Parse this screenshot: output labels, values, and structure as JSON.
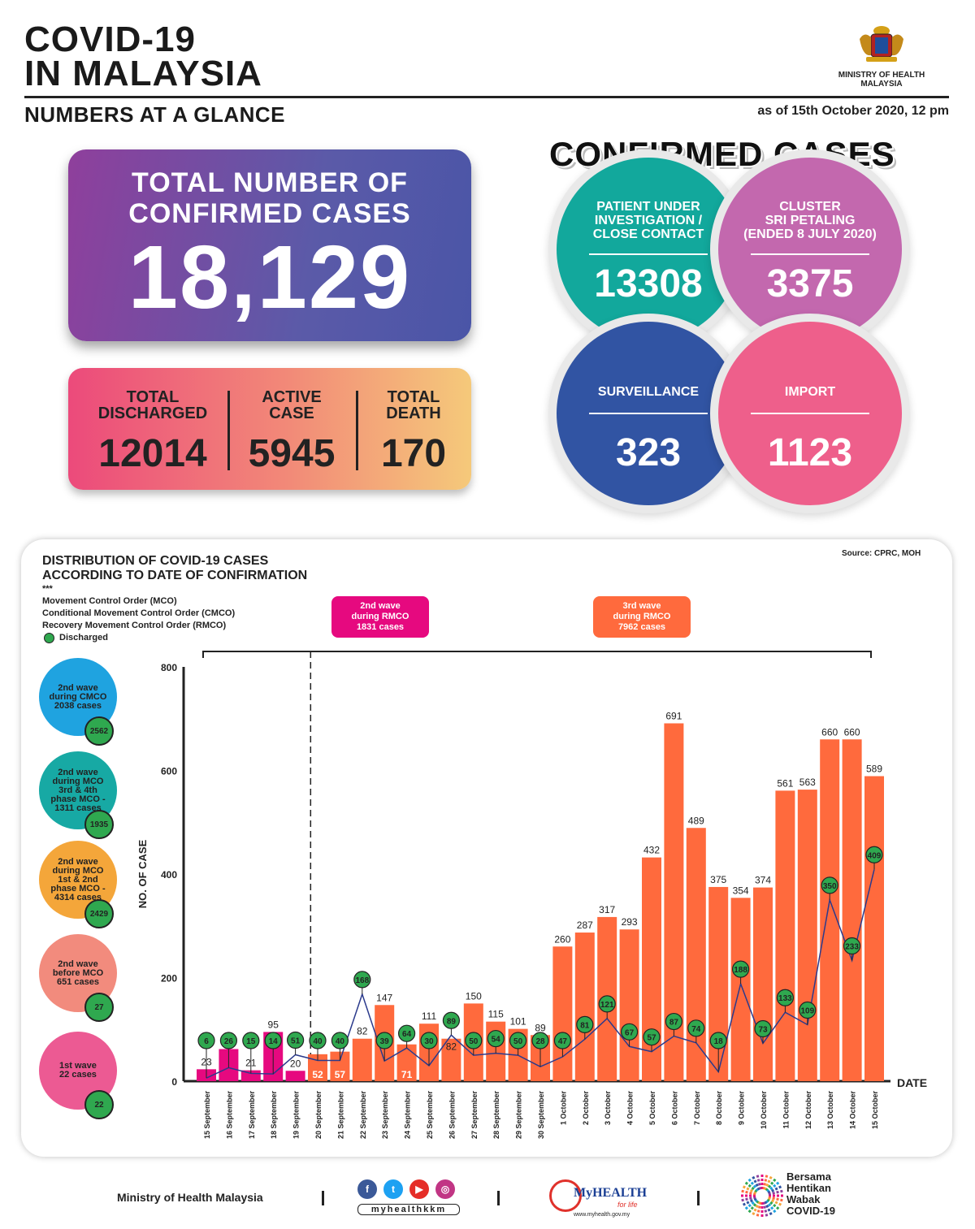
{
  "header": {
    "title_line1": "COVID-19",
    "title_line2": "IN MALAYSIA",
    "subtitle": "NUMBERS AT A GLANCE",
    "as_of": "as of 15th October 2020, 12 pm",
    "ministry_line1": "MINISTRY OF HEALTH",
    "ministry_line2": "MALAYSIA"
  },
  "totals": {
    "label_line1": "TOTAL NUMBER OF",
    "label_line2": "CONFIRMED CASES",
    "value": "18,129"
  },
  "stats": {
    "discharged_l1": "TOTAL",
    "discharged_l2": "DISCHARGED",
    "discharged": "12014",
    "active_l1": "ACTIVE",
    "active_l2": "CASE",
    "active": "5945",
    "death_l1": "TOTAL",
    "death_l2": "DEATH",
    "death": "170"
  },
  "confirmed": {
    "title": "CONFIRMED CASES",
    "pui_l1": "PATIENT UNDER",
    "pui_l2": "INVESTIGATION /",
    "pui_l3": "CLOSE CONTACT",
    "pui": "13308",
    "cluster_l1": "CLUSTER",
    "cluster_l2": "SRI PETALING",
    "cluster_l3": "(ENDED 8 JULY 2020)",
    "cluster": "3375",
    "surveillance_label": "SURVEILLANCE",
    "surveillance": "323",
    "import_label": "IMPORT",
    "import": "1123",
    "colors": {
      "pui": "#12a89c",
      "cluster": "#c368ae",
      "surveillance": "#3154a3",
      "import": "#ee5f8b"
    }
  },
  "panel": {
    "title_l1": "DISTRIBUTION OF COVID-19 CASES",
    "title_l2": "ACCORDING TO DATE OF CONFIRMATION",
    "legend_stars": "***",
    "legend_mco": "Movement Control Order (MCO)",
    "legend_cmco": "Conditional Movement Control Order (CMCO)",
    "legend_rmco": "Recovery Movement Control Order (RMCO)",
    "legend_discharged": "Discharged",
    "source": "Source: CPRC, MOH",
    "wave2_l1": "2nd wave",
    "wave2_l2": "during RMCO",
    "wave2_l3": "1831 cases",
    "wave3_l1": "3rd wave",
    "wave3_l2": "during RMCO",
    "wave3_l3": "7962 cases",
    "side": [
      {
        "l1": "2nd wave",
        "l2": "during CMCO",
        "l3": "2038 cases",
        "l4": "",
        "badge": "2562",
        "color": "#1fa3e0"
      },
      {
        "l1": "2nd wave",
        "l2": "during MCO",
        "l3": "3rd & 4th",
        "l4": "phase MCO -",
        "l5": "1311 cases",
        "badge": "1935",
        "color": "#17a9a4"
      },
      {
        "l1": "2nd wave",
        "l2": "during MCO",
        "l3": "1st & 2nd",
        "l4": "phase MCO -",
        "l5": "4314 cases",
        "badge": "2429",
        "color": "#f4a63a"
      },
      {
        "l1": "2nd wave",
        "l2": "before MCO",
        "l3": "651 cases",
        "l4": "",
        "badge": "27",
        "color": "#f28b7d"
      },
      {
        "l1": "1st wave",
        "l2": "22 cases",
        "l3": "",
        "l4": "",
        "badge": "22",
        "color": "#ec5a93"
      }
    ]
  },
  "chart_data": {
    "type": "bar",
    "ylabel": "NO. OF CASE",
    "xlabel": "DATE",
    "ylim": [
      0,
      800
    ],
    "yticks": [
      0,
      200,
      400,
      600,
      800
    ],
    "categories": [
      "15 September",
      "16 September",
      "17 September",
      "18 September",
      "19 September",
      "20 September",
      "21 September",
      "22 September",
      "23 September",
      "24 September",
      "25 September",
      "26 September",
      "27 September",
      "28 September",
      "29 September",
      "30 September",
      "1 October",
      "2 October",
      "3 October",
      "4 October",
      "5 October",
      "6 October",
      "7 October",
      "8 October",
      "9 October",
      "10 October",
      "11 October",
      "12 October",
      "13 October",
      "14 October",
      "15 October"
    ],
    "series": [
      {
        "values": [
          23,
          62,
          21,
          95,
          20,
          52,
          57,
          82,
          147,
          71,
          111,
          82,
          150,
          115,
          101,
          89,
          260,
          287,
          317,
          293,
          432,
          691,
          489,
          375,
          354,
          374,
          561,
          563,
          660,
          660,
          589
        ],
        "type": "bar"
      },
      {
        "name": "Discharged",
        "values": [
          6,
          26,
          15,
          14,
          51,
          40,
          40,
          168,
          39,
          64,
          30,
          89,
          50,
          54,
          50,
          28,
          47,
          81,
          121,
          67,
          57,
          87,
          74,
          18,
          188,
          73,
          133,
          109,
          350,
          233,
          409
        ],
        "type": "line"
      }
    ],
    "bar_colors": {
      "before_rmco": "#e6097f",
      "rmco_wave2": "#ff6a3d"
    },
    "line_color": "#2b3a8c",
    "discharged_marker_color": "#2fa84f"
  },
  "footer": {
    "ministry": "Ministry of Health Malaysia",
    "handle": "myhealthkkm",
    "myhealth": "MyHEALTH",
    "myhealth_tag": "for life",
    "myhealth_url": "www.myhealth.gov.my",
    "campaign_l1": "Bersama",
    "campaign_l2": "Hentikan",
    "campaign_l3": "Wabak",
    "campaign_l4": "COVID-19"
  }
}
